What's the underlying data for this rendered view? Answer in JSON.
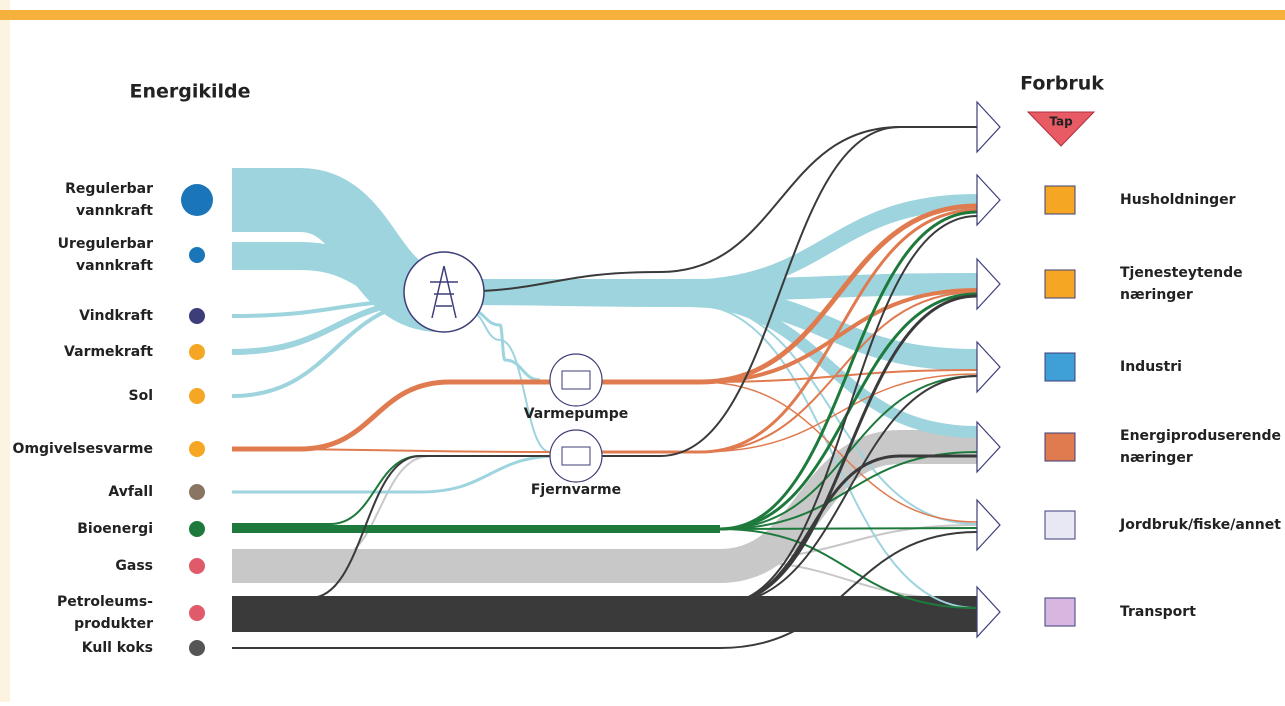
{
  "header": {
    "sources_title": "Energikilde",
    "consumers_title": "Forbruk"
  },
  "sources": [
    [
      "Regulerbar",
      "vannkraft"
    ],
    [
      "Uregulerbar",
      "vannkraft"
    ],
    [
      "Vindkraft"
    ],
    [
      "Varmekraft"
    ],
    [
      "Sol"
    ],
    [
      "Omgivelsesvarme"
    ],
    [
      "Avfall"
    ],
    [
      "Bioenergi"
    ],
    [
      "Gass"
    ],
    [
      "Petroleums-",
      "produkter"
    ],
    [
      "Kull koks"
    ]
  ],
  "converters": [
    "Varmepumpe",
    "Fjernvarme"
  ],
  "loss": "Tap",
  "consumers": [
    [
      "Husholdninger"
    ],
    [
      "Tjenesteytende",
      "næringer"
    ],
    [
      "Industri"
    ],
    [
      "Energiproduserende",
      "næringer"
    ],
    [
      "Jordbruk/fiske/annet"
    ],
    [
      "Transport"
    ]
  ]
}
